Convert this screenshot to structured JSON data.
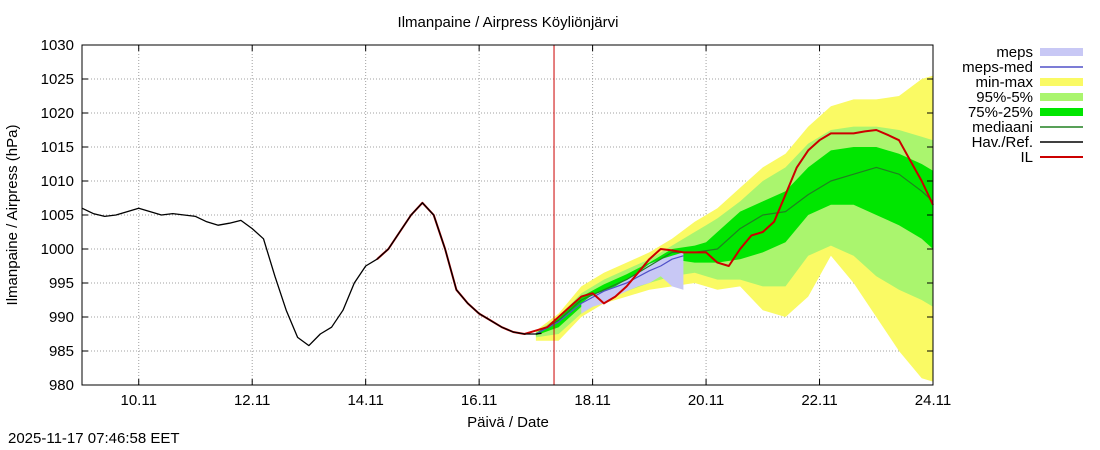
{
  "timestamp": "2025-11-17 07:46:58 EET",
  "chart_data": {
    "type": "line",
    "title": "Ilmanpaine / Airpress Köyliönjärvi",
    "xlabel": "Päivä / Date",
    "ylabel": "Ilmanpaine / Airpress (hPa)",
    "x_unit": "days since 09.11 00:00",
    "xlim": [
      0.0,
      15.0
    ],
    "ylim": [
      980,
      1030
    ],
    "yticks": [
      980,
      985,
      990,
      995,
      1000,
      1005,
      1010,
      1015,
      1020,
      1025,
      1030
    ],
    "xticks": [
      {
        "x": 1.0,
        "label": "10.11"
      },
      {
        "x": 3.0,
        "label": "12.11"
      },
      {
        "x": 5.0,
        "label": "14.11"
      },
      {
        "x": 7.0,
        "label": "16.11"
      },
      {
        "x": 9.0,
        "label": "18.11"
      },
      {
        "x": 11.0,
        "label": "20.11"
      },
      {
        "x": 13.0,
        "label": "22.11"
      },
      {
        "x": 15.0,
        "label": "24.11"
      }
    ],
    "grid": true,
    "legend_position": "outside-right",
    "now_marker": {
      "x": 8.32,
      "color": "#cc0000"
    },
    "legend": [
      {
        "key": "meps",
        "label": "meps",
        "color": "#c8c8f5",
        "style": "band"
      },
      {
        "key": "meps_med",
        "label": "meps-med",
        "color": "#5050c8",
        "style": "line"
      },
      {
        "key": "minmax",
        "label": "min-max",
        "color": "#fafa64",
        "style": "band"
      },
      {
        "key": "p95_5",
        "label": "95%-5%",
        "color": "#aaf56e",
        "style": "band"
      },
      {
        "key": "p75_25",
        "label": "75%-25%",
        "color": "#00e600",
        "style": "band"
      },
      {
        "key": "median",
        "label": "mediaani",
        "color": "#208020",
        "style": "line"
      },
      {
        "key": "obs",
        "label": "Hav./Ref.",
        "color": "#000000",
        "style": "line"
      },
      {
        "key": "il",
        "label": "IL",
        "color": "#cc0000",
        "style": "line"
      }
    ],
    "series": {
      "obs": {
        "x": [
          0.0,
          0.2,
          0.4,
          0.6,
          0.8,
          1.0,
          1.2,
          1.4,
          1.6,
          1.8,
          2.0,
          2.2,
          2.4,
          2.6,
          2.8,
          3.0,
          3.2,
          3.4,
          3.6,
          3.8,
          4.0,
          4.2,
          4.4,
          4.6,
          4.8,
          5.0,
          5.2,
          5.4,
          5.6,
          5.8,
          6.0,
          6.2,
          6.4,
          6.6,
          6.8,
          7.0,
          7.2,
          7.4,
          7.6,
          7.8,
          8.0,
          8.1
        ],
        "y": [
          1006.0,
          1005.2,
          1004.8,
          1005.0,
          1005.5,
          1006.0,
          1005.5,
          1005.0,
          1005.2,
          1005.0,
          1004.8,
          1004.0,
          1003.5,
          1003.8,
          1004.2,
          1003.0,
          1001.5,
          996.0,
          991.0,
          987.0,
          985.8,
          987.5,
          988.5,
          991.0,
          995.0,
          997.5,
          998.5,
          1000.0,
          1002.5,
          1005.0,
          1006.8,
          1005.0,
          1000.0,
          994.0,
          992.0,
          990.5,
          989.5,
          988.5,
          987.8,
          987.5,
          987.5,
          987.6
        ]
      },
      "il": {
        "x": [
          5.2,
          5.4,
          5.6,
          5.8,
          6.0,
          6.2,
          6.4,
          6.6,
          6.8,
          7.0,
          7.2,
          7.4,
          7.6,
          7.8,
          8.0,
          8.2,
          8.4,
          8.6,
          8.8,
          9.0,
          9.2,
          9.4,
          9.6,
          9.8,
          10.0,
          10.2,
          10.4,
          10.6,
          10.8,
          11.0,
          11.2,
          11.4,
          11.6,
          11.8,
          12.0,
          12.2,
          12.4,
          12.6,
          12.8,
          13.0,
          13.2,
          13.4,
          13.6,
          13.8,
          14.0,
          14.2,
          14.4,
          14.6,
          14.8,
          15.0
        ],
        "y": [
          998.5,
          1000.0,
          1002.5,
          1005.0,
          1006.8,
          1005.0,
          1000.0,
          994.0,
          992.0,
          990.5,
          989.5,
          988.5,
          987.8,
          987.5,
          988.0,
          988.5,
          990.0,
          991.5,
          993.0,
          993.5,
          992.0,
          993.0,
          994.5,
          996.5,
          998.5,
          1000.0,
          999.8,
          999.5,
          999.5,
          999.5,
          998.0,
          997.5,
          1000.0,
          1002.0,
          1002.5,
          1004.0,
          1008.0,
          1012.0,
          1014.5,
          1016.0,
          1017.0,
          1017.0,
          1017.0,
          1017.3,
          1017.5,
          1016.8,
          1016.0,
          1013.0,
          1010.0,
          1006.5
        ]
      },
      "median": {
        "x": [
          8.0,
          8.4,
          8.8,
          9.2,
          9.6,
          10.0,
          10.4,
          10.8,
          11.2,
          11.6,
          12.0,
          12.4,
          12.8,
          13.2,
          13.6,
          14.0,
          14.4,
          14.8,
          15.0
        ],
        "y": [
          987.5,
          989.5,
          992.5,
          994.0,
          995.5,
          997.5,
          999.5,
          999.5,
          1000.0,
          1003.0,
          1005.0,
          1005.5,
          1008.0,
          1010.0,
          1011.0,
          1012.0,
          1011.0,
          1008.5,
          1007.0
        ]
      },
      "meps_med": {
        "x": [
          8.0,
          8.4,
          8.8,
          9.2,
          9.6,
          10.0,
          10.2,
          10.4,
          10.6
        ],
        "y": [
          987.5,
          989.3,
          992.0,
          993.8,
          995.0,
          996.8,
          997.5,
          998.5,
          999.0
        ]
      },
      "minmax": {
        "x": [
          8.0,
          8.4,
          8.8,
          9.2,
          9.6,
          10.0,
          10.4,
          10.8,
          11.0,
          11.2,
          11.6,
          12.0,
          12.4,
          12.8,
          13.2,
          13.6,
          14.0,
          14.4,
          14.8,
          15.0
        ],
        "upper": [
          988.0,
          990.5,
          994.5,
          996.5,
          998.0,
          999.5,
          1001.5,
          1004.0,
          1005.0,
          1006.0,
          1009.0,
          1012.0,
          1014.0,
          1018.0,
          1021.0,
          1022.0,
          1022.0,
          1022.5,
          1025.0,
          1025.5
        ],
        "lower": [
          986.5,
          986.5,
          990.0,
          992.0,
          993.0,
          994.0,
          994.5,
          995.0,
          994.5,
          994.0,
          994.5,
          991.0,
          990.0,
          993.0,
          999.0,
          995.0,
          990.0,
          985.0,
          981.0,
          980.5
        ]
      },
      "p95_5": {
        "x": [
          8.0,
          8.4,
          8.8,
          9.2,
          9.6,
          10.0,
          10.4,
          10.8,
          11.0,
          11.2,
          11.6,
          12.0,
          12.4,
          12.8,
          13.2,
          13.6,
          14.0,
          14.4,
          14.8,
          15.0
        ],
        "upper": [
          987.8,
          990.0,
          993.5,
          995.5,
          997.0,
          998.5,
          1000.5,
          1002.5,
          1003.5,
          1004.5,
          1007.0,
          1010.0,
          1012.0,
          1015.5,
          1017.5,
          1018.0,
          1018.0,
          1017.5,
          1016.5,
          1016.0
        ],
        "lower": [
          987.0,
          987.5,
          990.5,
          992.5,
          993.8,
          995.0,
          996.0,
          996.5,
          996.0,
          995.5,
          995.5,
          994.5,
          994.5,
          999.0,
          1000.5,
          999.0,
          996.0,
          994.0,
          992.5,
          991.5
        ]
      },
      "p75_25": {
        "x": [
          8.0,
          8.4,
          8.8,
          9.2,
          9.6,
          10.0,
          10.4,
          10.8,
          11.0,
          11.2,
          11.6,
          12.0,
          12.4,
          12.8,
          13.2,
          13.6,
          14.0,
          14.4,
          14.8,
          15.0
        ],
        "upper": [
          987.6,
          989.8,
          993.0,
          994.8,
          996.3,
          998.0,
          1000.0,
          1000.5,
          1001.0,
          1002.5,
          1005.5,
          1007.0,
          1008.5,
          1012.0,
          1014.5,
          1015.0,
          1015.0,
          1014.0,
          1012.5,
          1011.5
        ],
        "lower": [
          987.3,
          988.5,
          991.5,
          993.3,
          994.8,
          996.5,
          998.5,
          998.0,
          998.0,
          998.0,
          998.5,
          999.5,
          1001.0,
          1005.0,
          1006.5,
          1006.5,
          1005.0,
          1003.5,
          1001.5,
          1000.0
        ]
      },
      "meps": {
        "x": [
          8.8,
          9.0,
          9.2,
          9.4,
          9.6,
          9.8,
          10.0,
          10.2,
          10.4,
          10.6
        ],
        "upper": [
          992.0,
          993.3,
          993.8,
          994.5,
          995.5,
          996.5,
          997.8,
          998.5,
          999.0,
          999.5
        ],
        "lower": [
          990.5,
          991.5,
          992.0,
          993.0,
          993.8,
          994.5,
          995.0,
          996.0,
          994.5,
          994.0
        ]
      }
    }
  }
}
